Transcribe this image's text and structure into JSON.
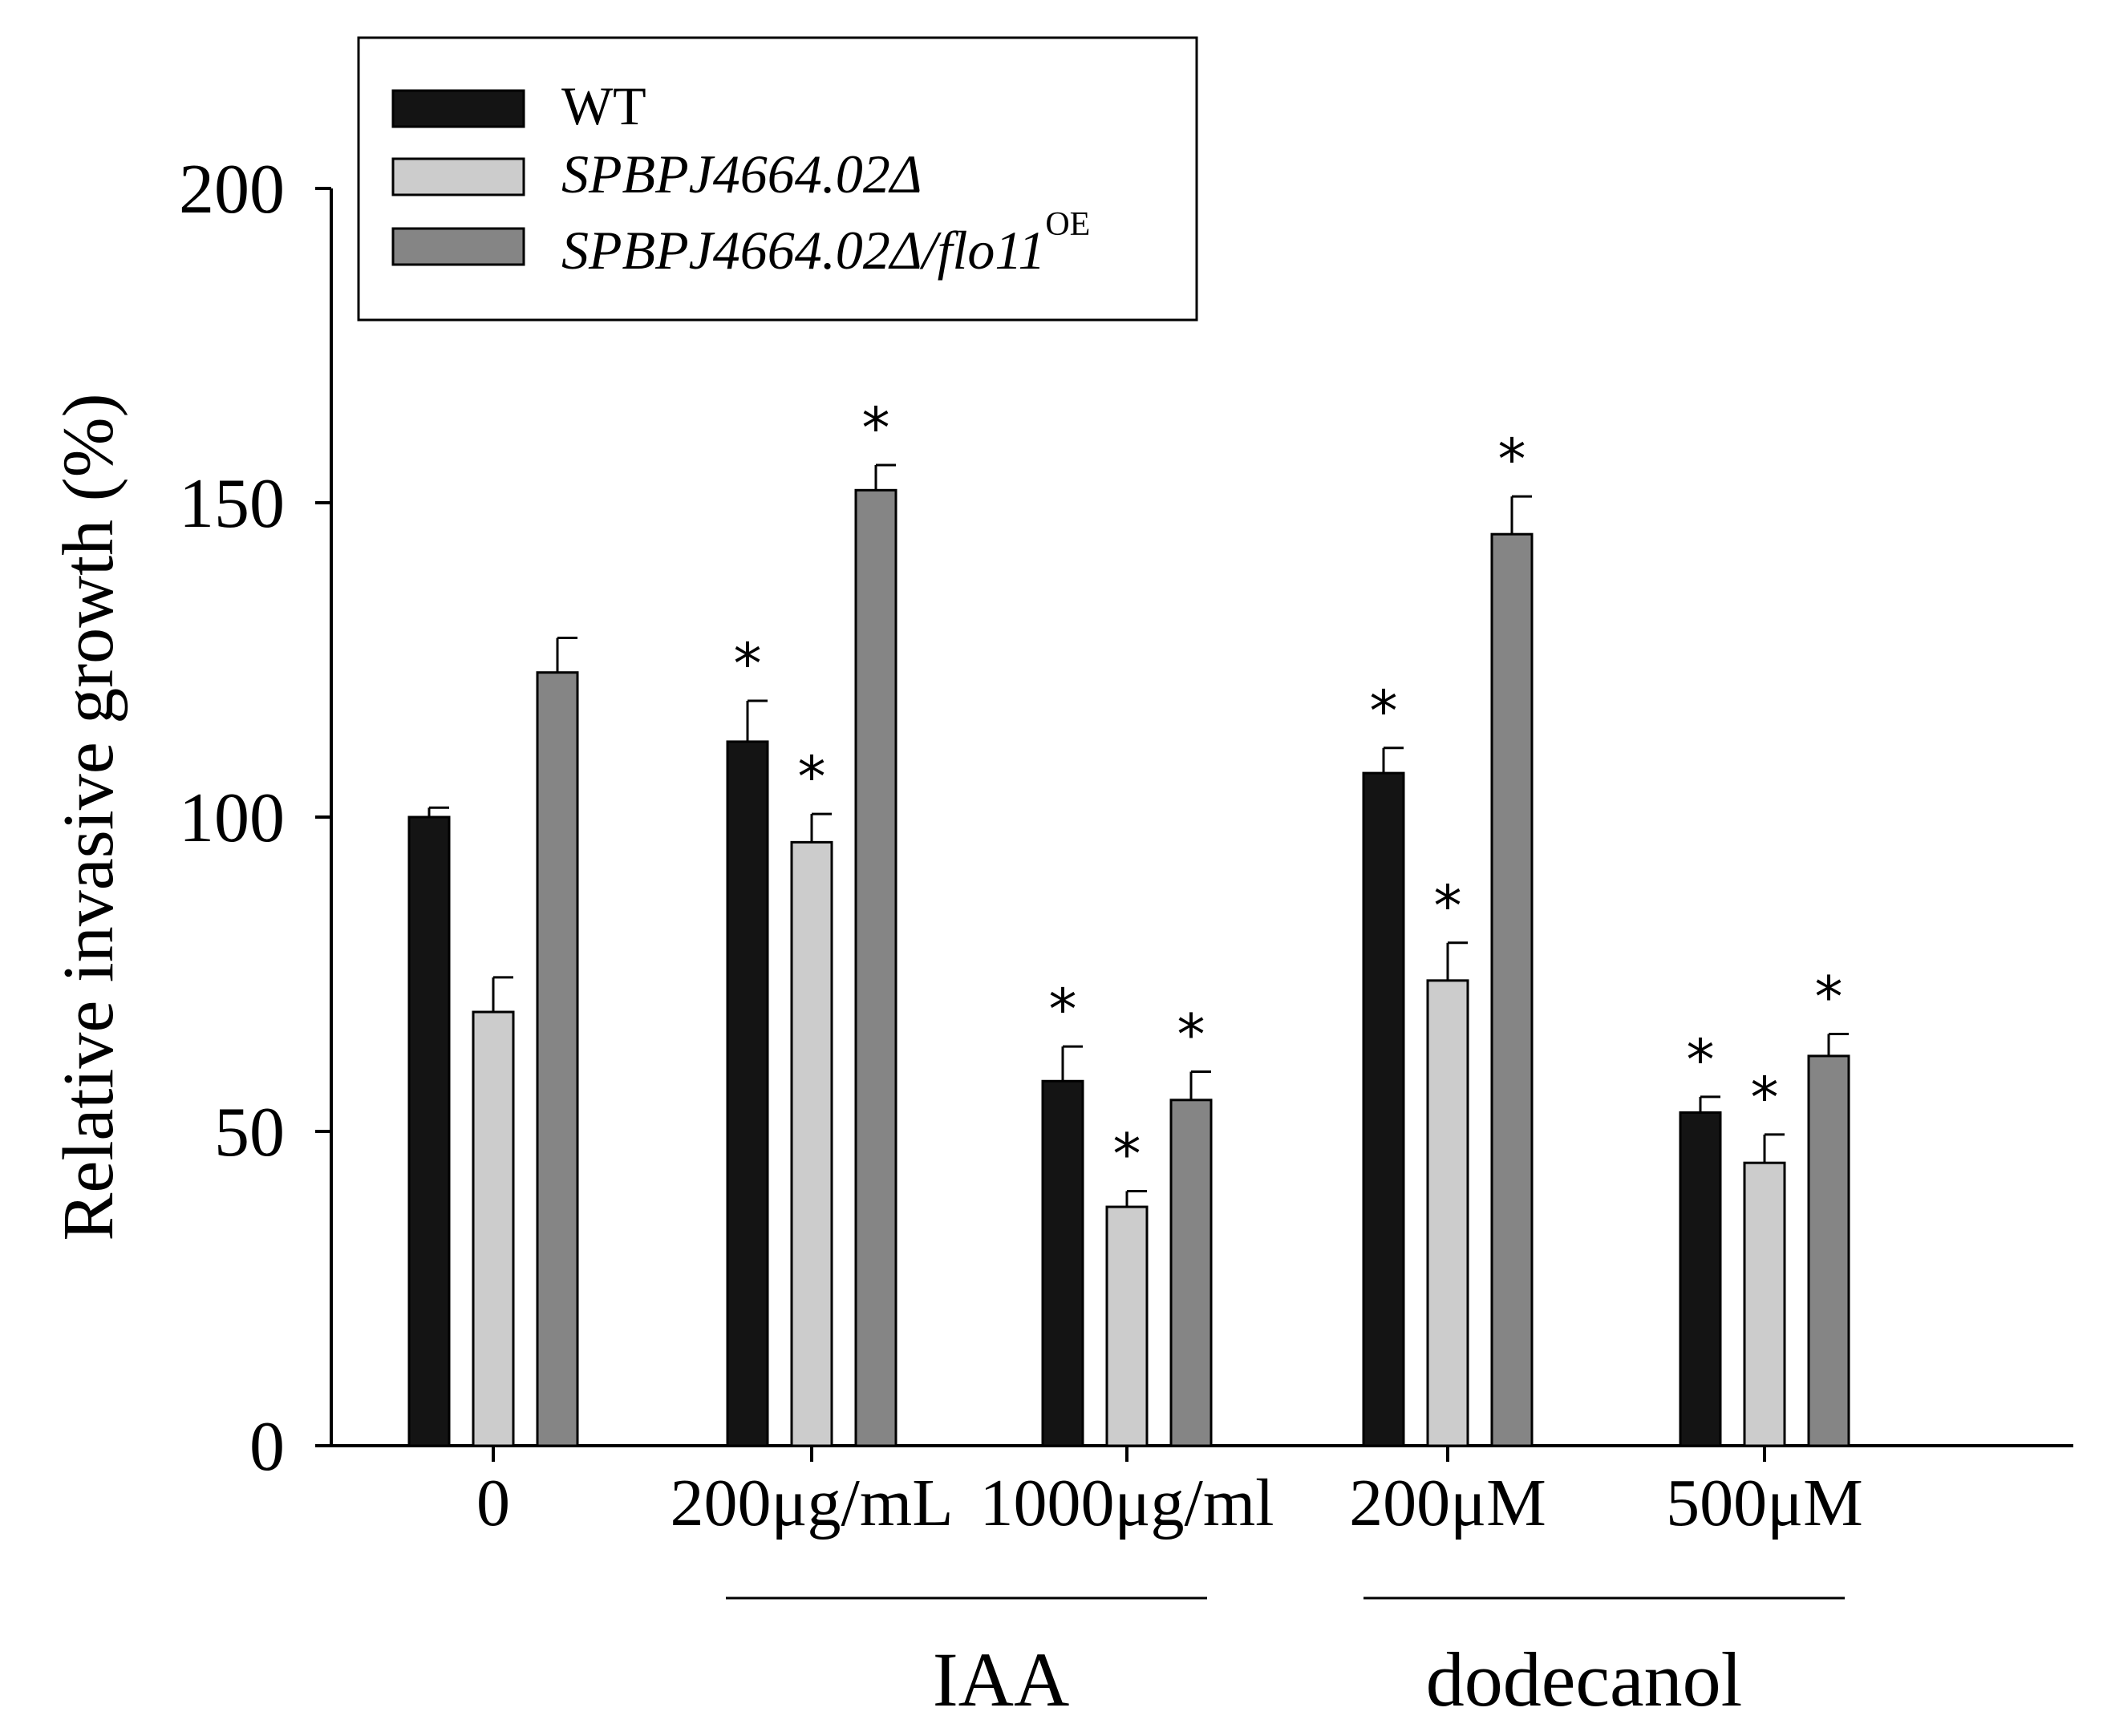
{
  "chart_data": {
    "type": "bar",
    "ylabel": "Relative invasive growth (%)",
    "ylim": [
      0,
      200
    ],
    "yticks": [
      "0",
      "50",
      "100",
      "150",
      "200"
    ],
    "categories": [
      "0",
      "200μg/mL",
      "1000μg/ml",
      "200μM",
      "500μM"
    ],
    "group_labels": [
      {
        "label": "IAA",
        "categories": [
          "200μg/mL",
          "1000μg/ml"
        ]
      },
      {
        "label": "dodecanol",
        "categories": [
          "200μM",
          "500μM"
        ]
      }
    ],
    "series": [
      {
        "name": "WT",
        "color": "#141414",
        "values": [
          100,
          112,
          58,
          107,
          53
        ],
        "errors": [
          1.5,
          6.5,
          5.5,
          4,
          2.5
        ],
        "significant": [
          false,
          true,
          true,
          true,
          true
        ]
      },
      {
        "name": "SPBPJ4664.02Δ",
        "color": "#cccccc",
        "values": [
          69,
          96,
          38,
          74,
          45
        ],
        "errors": [
          5.5,
          4.5,
          2.5,
          6,
          4.5
        ],
        "significant": [
          false,
          true,
          true,
          true,
          true
        ]
      },
      {
        "name": "SPBPJ4664.02Δ/flo11",
        "superscript": "OE",
        "color": "#858585",
        "values": [
          123,
          152,
          55,
          145,
          62
        ],
        "errors": [
          5.5,
          4,
          4.5,
          6,
          3.5
        ],
        "significant": [
          false,
          true,
          true,
          true,
          true
        ]
      }
    ],
    "significance_marker": "*",
    "legend_position": "top-left"
  }
}
